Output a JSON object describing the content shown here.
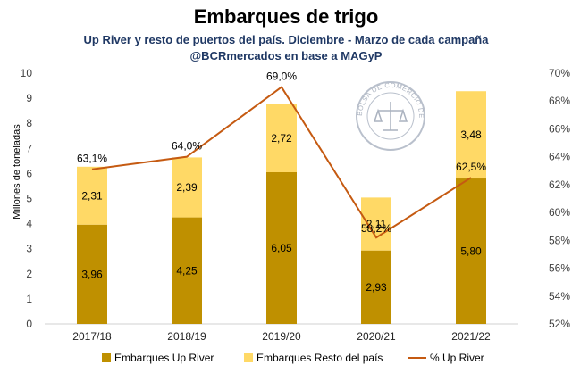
{
  "chart_data": {
    "type": "bar",
    "stacked": true,
    "title": "Embarques de trigo",
    "subtitle": "Up River y resto de puertos del país. Diciembre - Marzo de cada campaña",
    "source": "@BCRmercados en base a MAGyP",
    "categories": [
      "2017/18",
      "2018/19",
      "2019/20",
      "2020/21",
      "2021/22"
    ],
    "ylabel": "Millones de toneladas",
    "ylim": [
      0,
      10
    ],
    "yticks": [
      0,
      1,
      2,
      3,
      4,
      5,
      6,
      7,
      8,
      9,
      10
    ],
    "y2lim": [
      52,
      70
    ],
    "y2ticks": [
      "52%",
      "54%",
      "56%",
      "58%",
      "60%",
      "62%",
      "64%",
      "66%",
      "68%",
      "70%"
    ],
    "series": [
      {
        "name": "Embarques Up River",
        "type": "bar",
        "color": "#bf9000",
        "values": [
          3.96,
          4.25,
          6.05,
          2.93,
          5.8
        ],
        "labels": [
          "3,96",
          "4,25",
          "6,05",
          "2,93",
          "5,80"
        ]
      },
      {
        "name": "Embarques Resto del país",
        "type": "bar",
        "color": "#ffd966",
        "values": [
          2.31,
          2.39,
          2.72,
          2.11,
          3.48
        ],
        "labels": [
          "2,31",
          "2,39",
          "2,72",
          "2,11",
          "3,48"
        ]
      },
      {
        "name": "% Up River",
        "type": "line",
        "axis": "right",
        "color": "#c55a11",
        "values": [
          63.1,
          64.0,
          69.0,
          58.2,
          62.5
        ],
        "labels": [
          "63,1%",
          "64,0%",
          "69,0%",
          "58,2%",
          "62,5%"
        ]
      }
    ],
    "legend_position": "bottom",
    "grid": false,
    "watermark_text": "BOLSA DE COMERCIO DE ROSARIO"
  }
}
